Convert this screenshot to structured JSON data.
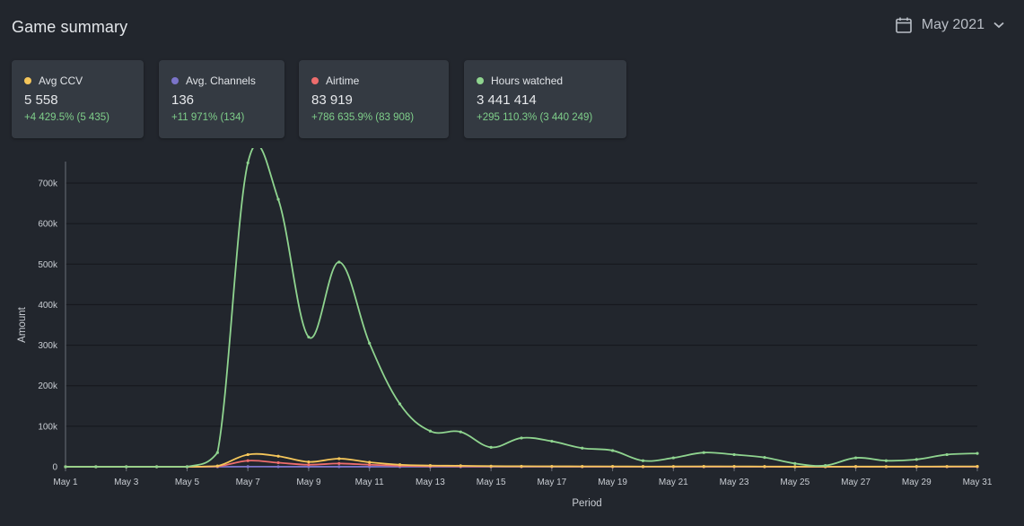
{
  "header": {
    "title": "Game summary",
    "period_label": "May 2021",
    "calendar_icon": "calendar-icon",
    "dropdown_icon": "chevron-down-icon"
  },
  "cards": [
    {
      "label": "Avg CCV",
      "value": "5 558",
      "delta": "+4 429.5% (5 435)",
      "color": "#f5c65a"
    },
    {
      "label": "Avg. Channels",
      "value": "136",
      "delta": "+11 971% (134)",
      "color": "#7b74c9"
    },
    {
      "label": "Airtime",
      "value": "83 919",
      "delta": "+786 635.9% (83 908)",
      "color": "#ee6d6d"
    },
    {
      "label": "Hours watched",
      "value": "3 441 414",
      "delta": "+295 110.3% (3 440 249)",
      "color": "#8fd48f"
    }
  ],
  "chart_data": {
    "type": "line",
    "xlabel": "Period",
    "ylabel": "Amount",
    "ylim": [
      0,
      700000
    ],
    "y_ticks": [
      0,
      100000,
      200000,
      300000,
      400000,
      500000,
      600000,
      700000
    ],
    "y_tick_labels": [
      "0",
      "100k",
      "200k",
      "300k",
      "400k",
      "500k",
      "600k",
      "700k"
    ],
    "x_tick_labels": [
      "May 1",
      "May 3",
      "May 5",
      "May 7",
      "May 9",
      "May 11",
      "May 13",
      "May 15",
      "May 17",
      "May 19",
      "May 21",
      "May 23",
      "May 25",
      "May 27",
      "May 29",
      "May 31"
    ],
    "x": [
      1,
      2,
      3,
      4,
      5,
      6,
      7,
      8,
      9,
      10,
      11,
      12,
      13,
      14,
      15,
      16,
      17,
      18,
      19,
      20,
      21,
      22,
      23,
      24,
      25,
      26,
      27,
      28,
      29,
      30,
      31
    ],
    "grid": true,
    "series": [
      {
        "color": "#8fd48f",
        "values": [
          0,
          0,
          0,
          0,
          0,
          35000,
          750000,
          660000,
          320000,
          505000,
          305000,
          155000,
          88000,
          86000,
          48000,
          71000,
          63000,
          46000,
          40000,
          15000,
          22000,
          35000,
          30000,
          23000,
          8000,
          3000,
          22000,
          15000,
          18000,
          30000,
          33000
        ]
      },
      {
        "color": "#f5c65a",
        "values": [
          0,
          0,
          0,
          0,
          0,
          2000,
          30000,
          26000,
          12000,
          20000,
          11000,
          5000,
          3000,
          2500,
          1500,
          1200,
          1000,
          900,
          800,
          600,
          700,
          900,
          800,
          600,
          300,
          200,
          500,
          400,
          500,
          700,
          900
        ]
      },
      {
        "color": "#ee6d6d",
        "values": [
          0,
          0,
          0,
          0,
          0,
          1000,
          15000,
          10000,
          5000,
          8000,
          5000,
          2500,
          1500,
          1200,
          800,
          600,
          500,
          400,
          350,
          250,
          300,
          400,
          350,
          250,
          120,
          80,
          200,
          150,
          200,
          300,
          350
        ]
      },
      {
        "color": "#7b74c9",
        "values": [
          0,
          0,
          0,
          0,
          0,
          0,
          200,
          180,
          120,
          150,
          100,
          70,
          50,
          45,
          35,
          30,
          28,
          25,
          22,
          18,
          20,
          22,
          20,
          18,
          12,
          10,
          15,
          14,
          15,
          18,
          20
        ]
      }
    ]
  }
}
